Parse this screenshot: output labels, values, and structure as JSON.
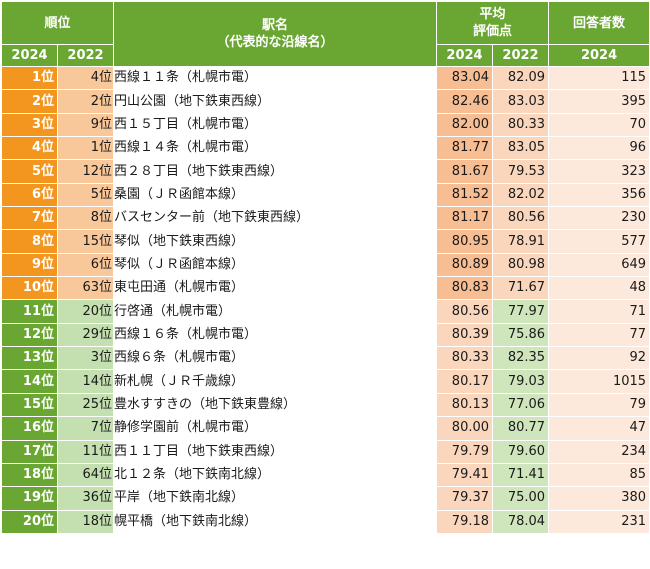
{
  "header": {
    "rank_label": "順位",
    "station_label": "駅名",
    "station_sub": "（代表的な沿線名）",
    "score_label_1": "平均",
    "score_label_2": "評価点",
    "count_label": "回答者数",
    "year_2024": "2024",
    "year_2022": "2022"
  },
  "rows": [
    {
      "rank2024": "1位",
      "rank2022": "4位",
      "station": "西線１１条（札幌市電）",
      "score2024": "83.04",
      "score2022": "82.09",
      "count": "115"
    },
    {
      "rank2024": "2位",
      "rank2022": "2位",
      "station": "円山公園（地下鉄東西線）",
      "score2024": "82.46",
      "score2022": "83.03",
      "count": "395"
    },
    {
      "rank2024": "3位",
      "rank2022": "9位",
      "station": "西１５丁目（札幌市電）",
      "score2024": "82.00",
      "score2022": "80.33",
      "count": "70"
    },
    {
      "rank2024": "4位",
      "rank2022": "1位",
      "station": "西線１４条（札幌市電）",
      "score2024": "81.77",
      "score2022": "83.05",
      "count": "96"
    },
    {
      "rank2024": "5位",
      "rank2022": "12位",
      "station": "西２８丁目（地下鉄東西線）",
      "score2024": "81.67",
      "score2022": "79.53",
      "count": "323"
    },
    {
      "rank2024": "6位",
      "rank2022": "5位",
      "station": "桑園（ＪＲ函館本線）",
      "score2024": "81.52",
      "score2022": "82.02",
      "count": "356"
    },
    {
      "rank2024": "7位",
      "rank2022": "8位",
      "station": "バスセンター前（地下鉄東西線）",
      "score2024": "81.17",
      "score2022": "80.56",
      "count": "230"
    },
    {
      "rank2024": "8位",
      "rank2022": "15位",
      "station": "琴似（地下鉄東西線）",
      "score2024": "80.95",
      "score2022": "78.91",
      "count": "577"
    },
    {
      "rank2024": "9位",
      "rank2022": "6位",
      "station": "琴似（ＪＲ函館本線）",
      "score2024": "80.89",
      "score2022": "80.98",
      "count": "649"
    },
    {
      "rank2024": "10位",
      "rank2022": "63位",
      "station": "東屯田通（札幌市電）",
      "score2024": "80.83",
      "score2022": "71.67",
      "count": "48"
    },
    {
      "rank2024": "11位",
      "rank2022": "20位",
      "station": "行啓通（札幌市電）",
      "score2024": "80.56",
      "score2022": "77.97",
      "count": "71"
    },
    {
      "rank2024": "12位",
      "rank2022": "29位",
      "station": "西線１６条（札幌市電）",
      "score2024": "80.39",
      "score2022": "75.86",
      "count": "77"
    },
    {
      "rank2024": "13位",
      "rank2022": "3位",
      "station": "西線６条（札幌市電）",
      "score2024": "80.33",
      "score2022": "82.35",
      "count": "92"
    },
    {
      "rank2024": "14位",
      "rank2022": "14位",
      "station": "新札幌（ＪＲ千歳線）",
      "score2024": "80.17",
      "score2022": "79.03",
      "count": "1015"
    },
    {
      "rank2024": "15位",
      "rank2022": "25位",
      "station": "豊水すすきの（地下鉄東豊線）",
      "score2024": "80.13",
      "score2022": "77.06",
      "count": "79"
    },
    {
      "rank2024": "16位",
      "rank2022": "7位",
      "station": "静修学園前（札幌市電）",
      "score2024": "80.00",
      "score2022": "80.77",
      "count": "47"
    },
    {
      "rank2024": "17位",
      "rank2022": "11位",
      "station": "西１１丁目（地下鉄東西線）",
      "score2024": "79.79",
      "score2022": "79.60",
      "count": "234"
    },
    {
      "rank2024": "18位",
      "rank2022": "64位",
      "station": "北１２条（地下鉄南北線）",
      "score2024": "79.41",
      "score2022": "71.41",
      "count": "85"
    },
    {
      "rank2024": "19位",
      "rank2022": "36位",
      "station": "平岸（地下鉄南北線）",
      "score2024": "79.37",
      "score2022": "75.00",
      "count": "380"
    },
    {
      "rank2024": "20位",
      "rank2022": "18位",
      "station": "幌平橋（地下鉄南北線）",
      "score2024": "79.18",
      "score2022": "78.04",
      "count": "231"
    }
  ]
}
